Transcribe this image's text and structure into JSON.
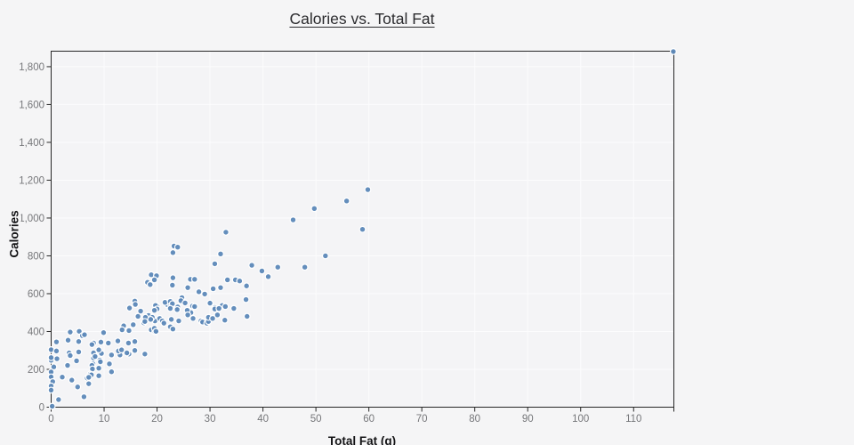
{
  "page": {
    "background": "#f5f5f6",
    "plot_background": "#f4f4f6"
  },
  "chart_data": {
    "type": "scatter",
    "title": "Calories vs. Total Fat",
    "xlabel": "Total Fat (g)",
    "ylabel": "Calories",
    "xlim": [
      0,
      117.6
    ],
    "ylim": [
      0,
      1882
    ],
    "x_ticks": [
      0,
      10,
      20,
      30,
      40,
      50,
      60,
      70,
      80,
      90,
      100,
      110
    ],
    "x_tick_labels": [
      "0",
      "10",
      "20",
      "30",
      "40",
      "50",
      "60",
      "70",
      "80",
      "90",
      "100",
      "110"
    ],
    "y_ticks": [
      0,
      200,
      400,
      600,
      800,
      1000,
      1200,
      1400,
      1600,
      1800
    ],
    "y_tick_labels": [
      "0",
      "200",
      "400",
      "600",
      "800",
      "1,000",
      "1,200",
      "1,400",
      "1,600",
      "1,800"
    ],
    "grid": "faint light gridlines at every tick",
    "legend": "none",
    "frame": "full box, 1px black, ticks outside",
    "marker": {
      "color": "#5c88b8",
      "stroke": "#ffffff",
      "radius": 3.3,
      "stroke_width": 1.2
    },
    "axis_color": "#262626",
    "grid_color": "#fcfcfd",
    "tick_label_color": "#76777a",
    "title_color": "#2b2b2e",
    "points": [
      [
        117.5,
        1880
      ],
      [
        59.8,
        1150
      ],
      [
        58.8,
        940
      ],
      [
        55.8,
        1090
      ],
      [
        49.7,
        1050
      ],
      [
        45.7,
        990
      ],
      [
        51.8,
        800
      ],
      [
        47.9,
        740
      ],
      [
        42.8,
        740
      ],
      [
        39.8,
        720
      ],
      [
        41.0,
        690
      ],
      [
        37.9,
        750
      ],
      [
        33.0,
        925
      ],
      [
        32.0,
        810
      ],
      [
        30.9,
        758
      ],
      [
        23.2,
        852
      ],
      [
        23.9,
        846
      ],
      [
        23.0,
        817
      ],
      [
        18.9,
        700
      ],
      [
        18.2,
        660
      ],
      [
        19.9,
        695
      ],
      [
        19.5,
        673
      ],
      [
        18.7,
        648
      ],
      [
        23.0,
        684
      ],
      [
        22.9,
        645
      ],
      [
        26.3,
        676
      ],
      [
        27.1,
        676
      ],
      [
        25.8,
        632
      ],
      [
        27.9,
        610
      ],
      [
        29.0,
        598
      ],
      [
        30.6,
        626
      ],
      [
        32.0,
        632
      ],
      [
        33.3,
        673
      ],
      [
        34.8,
        673
      ],
      [
        35.6,
        667
      ],
      [
        36.9,
        641
      ],
      [
        36.8,
        569
      ],
      [
        24.7,
        579
      ],
      [
        24.5,
        563
      ],
      [
        15.8,
        561
      ],
      [
        14.8,
        524
      ],
      [
        15.9,
        543
      ],
      [
        16.9,
        508
      ],
      [
        20.0,
        535
      ],
      [
        21.9,
        543
      ],
      [
        22.6,
        538
      ],
      [
        23.9,
        530
      ],
      [
        25.3,
        551
      ],
      [
        26.7,
        535
      ],
      [
        30.9,
        527
      ],
      [
        32.3,
        538
      ],
      [
        32.9,
        532
      ],
      [
        34.5,
        522
      ],
      [
        21.5,
        554
      ],
      [
        22.5,
        559
      ],
      [
        22.9,
        547
      ],
      [
        19.7,
        538
      ],
      [
        20.0,
        519
      ],
      [
        19.5,
        512
      ],
      [
        22.5,
        522
      ],
      [
        23.8,
        516
      ],
      [
        27.1,
        532
      ],
      [
        30.0,
        550
      ],
      [
        30.9,
        519
      ],
      [
        31.7,
        522
      ],
      [
        26.4,
        500
      ],
      [
        25.7,
        512
      ],
      [
        16.4,
        480
      ],
      [
        17.5,
        446
      ],
      [
        18.9,
        480
      ],
      [
        19.6,
        456
      ],
      [
        18.4,
        485
      ],
      [
        17.8,
        475
      ],
      [
        19.1,
        475
      ],
      [
        20.5,
        469
      ],
      [
        21.0,
        456
      ],
      [
        21.3,
        444
      ],
      [
        22.7,
        464
      ],
      [
        24.1,
        456
      ],
      [
        25.8,
        488
      ],
      [
        26.8,
        469
      ],
      [
        28.3,
        456
      ],
      [
        28.6,
        450
      ],
      [
        29.4,
        444
      ],
      [
        29.7,
        453
      ],
      [
        29.7,
        475
      ],
      [
        30.5,
        469
      ],
      [
        31.4,
        488
      ],
      [
        32.8,
        460
      ],
      [
        37.0,
        480
      ],
      [
        18.8,
        464
      ],
      [
        17.7,
        453
      ],
      [
        13.7,
        430
      ],
      [
        15.5,
        436
      ],
      [
        13.4,
        409
      ],
      [
        14.7,
        405
      ],
      [
        18.9,
        409
      ],
      [
        19.6,
        399
      ],
      [
        22.5,
        425
      ],
      [
        23.0,
        413
      ],
      [
        19.5,
        417
      ],
      [
        19.8,
        401
      ],
      [
        3.6,
        397
      ],
      [
        5.3,
        401
      ],
      [
        5.9,
        378
      ],
      [
        6.3,
        383
      ],
      [
        9.9,
        394
      ],
      [
        1.0,
        345
      ],
      [
        3.2,
        354
      ],
      [
        5.2,
        347
      ],
      [
        8.0,
        339
      ],
      [
        9.4,
        344
      ],
      [
        10.8,
        339
      ],
      [
        12.6,
        350
      ],
      [
        14.6,
        339
      ],
      [
        15.8,
        347
      ],
      [
        7.7,
        331
      ],
      [
        0.0,
        304
      ],
      [
        1.0,
        297
      ],
      [
        3.4,
        287
      ],
      [
        5.2,
        292
      ],
      [
        8.0,
        287
      ],
      [
        9.5,
        284
      ],
      [
        11.4,
        276
      ],
      [
        13.0,
        276
      ],
      [
        14.7,
        281
      ],
      [
        9.0,
        303
      ],
      [
        12.7,
        297
      ],
      [
        13.3,
        303
      ],
      [
        14.3,
        287
      ],
      [
        15.8,
        300
      ],
      [
        17.7,
        281
      ],
      [
        3.6,
        273
      ],
      [
        0.0,
        248
      ],
      [
        1.1,
        256
      ],
      [
        0.0,
        262
      ],
      [
        4.8,
        245
      ],
      [
        8.0,
        260
      ],
      [
        8.3,
        268
      ],
      [
        9.2,
        249
      ],
      [
        9.3,
        240
      ],
      [
        7.9,
        229
      ],
      [
        11.0,
        229
      ],
      [
        0.5,
        213
      ],
      [
        3.1,
        221
      ],
      [
        7.7,
        221
      ],
      [
        0.0,
        186
      ],
      [
        7.8,
        202
      ],
      [
        9.0,
        206
      ],
      [
        0.0,
        160
      ],
      [
        6.8,
        154
      ],
      [
        7.4,
        175
      ],
      [
        7.6,
        171
      ],
      [
        9.0,
        166
      ],
      [
        7.1,
        158
      ],
      [
        11.4,
        187
      ],
      [
        2.1,
        159
      ],
      [
        0.3,
        135
      ],
      [
        0.0,
        112
      ],
      [
        5.0,
        107
      ],
      [
        3.9,
        143
      ],
      [
        7.1,
        124
      ],
      [
        0.0,
        90
      ],
      [
        6.2,
        55
      ],
      [
        1.4,
        40
      ],
      [
        0.2,
        5
      ]
    ]
  }
}
